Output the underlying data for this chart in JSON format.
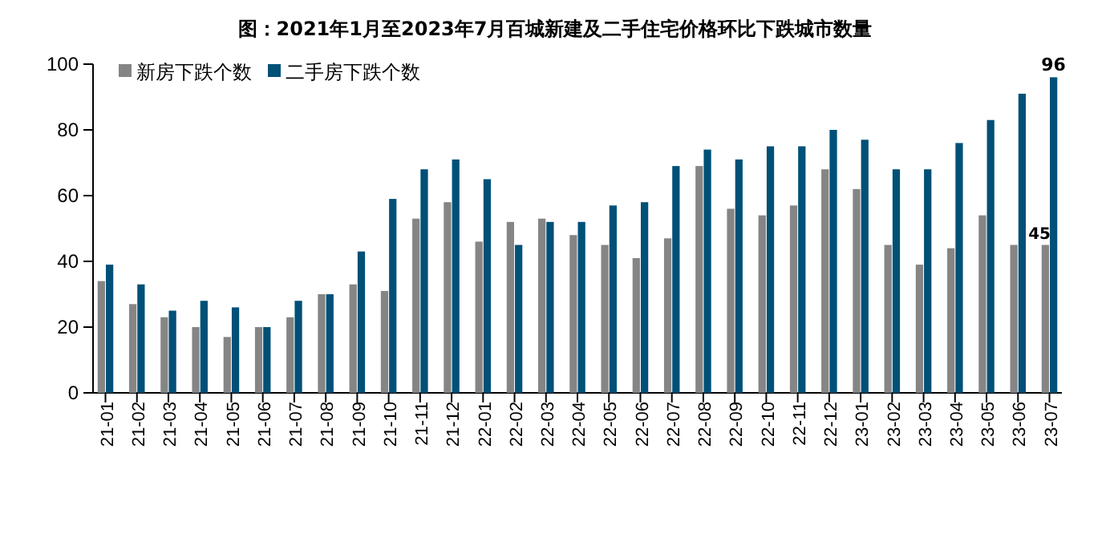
{
  "chart_data": {
    "type": "bar",
    "title": "图：2021年1月至2023年7月百城新建及二手住宅价格环比下跌城市数量",
    "categories": [
      "21-01",
      "21-02",
      "21-03",
      "21-04",
      "21-05",
      "21-06",
      "21-07",
      "21-08",
      "21-09",
      "21-10",
      "21-11",
      "21-12",
      "22-01",
      "22-02",
      "22-03",
      "22-04",
      "22-05",
      "22-06",
      "22-07",
      "22-08",
      "22-09",
      "22-10",
      "22-11",
      "22-12",
      "23-01",
      "23-02",
      "23-03",
      "23-04",
      "23-05",
      "23-06",
      "23-07"
    ],
    "series": [
      {
        "name": "新房下跌个数",
        "color": "#858585",
        "values": [
          34,
          27,
          23,
          20,
          17,
          20,
          23,
          30,
          33,
          31,
          53,
          58,
          46,
          52,
          53,
          48,
          45,
          41,
          47,
          69,
          56,
          54,
          57,
          68,
          62,
          45,
          39,
          44,
          54,
          45,
          45
        ],
        "value_labels": [
          null,
          null,
          null,
          null,
          null,
          null,
          null,
          null,
          null,
          null,
          null,
          null,
          null,
          null,
          null,
          null,
          null,
          null,
          null,
          null,
          null,
          null,
          null,
          null,
          null,
          null,
          null,
          null,
          null,
          null,
          "45"
        ]
      },
      {
        "name": "二手房下跌个数",
        "color": "#005078",
        "values": [
          39,
          33,
          25,
          28,
          26,
          20,
          28,
          30,
          43,
          59,
          68,
          71,
          65,
          45,
          52,
          52,
          57,
          58,
          69,
          74,
          71,
          75,
          75,
          80,
          77,
          68,
          68,
          76,
          83,
          91,
          96
        ],
        "value_labels": [
          null,
          null,
          null,
          null,
          null,
          null,
          null,
          null,
          null,
          null,
          null,
          null,
          null,
          null,
          null,
          null,
          null,
          null,
          null,
          null,
          null,
          null,
          null,
          null,
          null,
          null,
          null,
          null,
          null,
          null,
          "96"
        ]
      }
    ],
    "ylim": [
      0,
      100
    ],
    "yticks": [
      0,
      20,
      40,
      60,
      80,
      100
    ],
    "grid": false,
    "legend": "top left"
  }
}
